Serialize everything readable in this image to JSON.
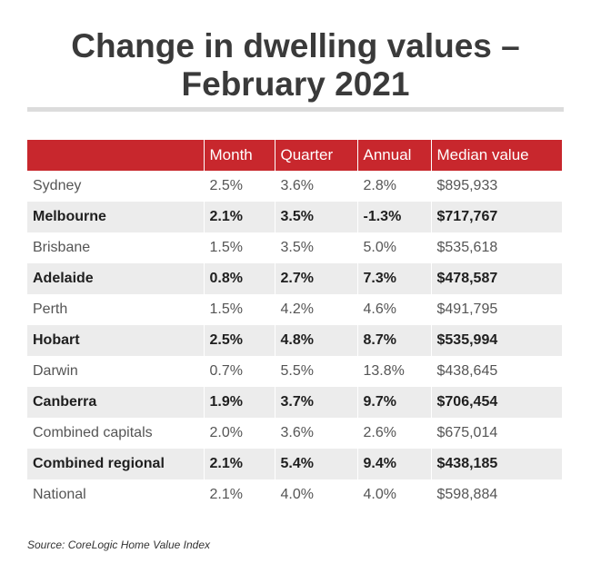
{
  "title": {
    "line1": "Change in dwelling values –",
    "line2": "February 2021"
  },
  "table": {
    "headers": [
      "",
      "Month",
      "Quarter",
      "Annual",
      "Median value"
    ],
    "rows": [
      [
        "Sydney",
        "2.5%",
        "3.6%",
        "2.8%",
        "$895,933"
      ],
      [
        "Melbourne",
        "2.1%",
        "3.5%",
        "-1.3%",
        "$717,767"
      ],
      [
        "Brisbane",
        "1.5%",
        "3.5%",
        "5.0%",
        "$535,618"
      ],
      [
        "Adelaide",
        "0.8%",
        "2.7%",
        "7.3%",
        "$478,587"
      ],
      [
        "Perth",
        "1.5%",
        "4.2%",
        "4.6%",
        "$491,795"
      ],
      [
        "Hobart",
        "2.5%",
        "4.8%",
        "8.7%",
        "$535,994"
      ],
      [
        "Darwin",
        "0.7%",
        "5.5%",
        "13.8%",
        "$438,645"
      ],
      [
        "Canberra",
        "1.9%",
        "3.7%",
        "9.7%",
        "$706,454"
      ],
      [
        "Combined capitals",
        "2.0%",
        "3.6%",
        "2.6%",
        "$675,014"
      ],
      [
        "Combined regional",
        "2.1%",
        "5.4%",
        "9.4%",
        "$438,185"
      ],
      [
        "National",
        "2.1%",
        "4.0%",
        "4.0%",
        "$598,884"
      ]
    ]
  },
  "source": "Source: CoreLogic Home Value Index",
  "colors": {
    "header_bg": "#c8272d",
    "shaded_row_bg": "#ececec",
    "title_text": "#3a3a3a",
    "rule": "#dcdcdc"
  }
}
